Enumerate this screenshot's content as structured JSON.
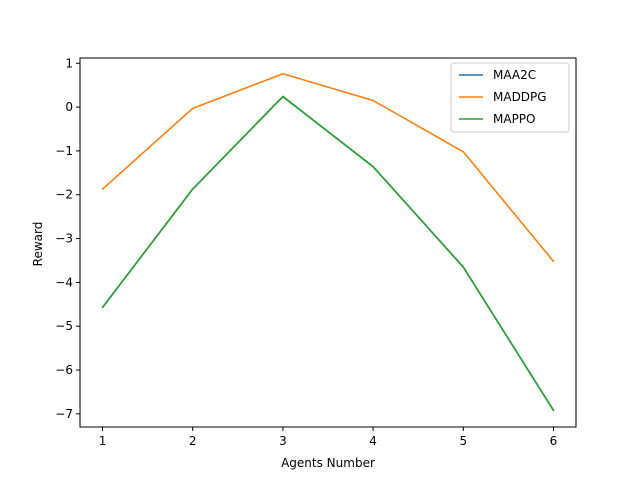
{
  "chart_data": {
    "type": "line",
    "title": "",
    "xlabel": "Agents Number",
    "ylabel": "Reward",
    "x": [
      1,
      2,
      3,
      4,
      5,
      6
    ],
    "xlim": [
      0.75,
      6.25
    ],
    "ylim": [
      -7.3,
      1.12
    ],
    "xticks": [
      1,
      2,
      3,
      4,
      5,
      6
    ],
    "yticks": [
      1,
      0,
      -1,
      -2,
      -3,
      -4,
      -5,
      -6,
      -7
    ],
    "ytick_labels": [
      "1",
      "0",
      "−1",
      "−2",
      "−3",
      "−4",
      "−5",
      "−6",
      "−7"
    ],
    "grid": false,
    "legend_position": "top-right",
    "series": [
      {
        "name": "MAA2C",
        "color": "#1f77b4",
        "values": [
          -4.57,
          -1.87,
          0.24,
          -1.36,
          -3.65,
          -6.92
        ]
      },
      {
        "name": "MADDPG",
        "color": "#ff7f0e",
        "values": [
          -1.87,
          -0.03,
          0.76,
          0.15,
          -1.02,
          -3.52
        ]
      },
      {
        "name": "MAPPO",
        "color": "#2ca02c",
        "values": [
          -4.57,
          -1.87,
          0.24,
          -1.36,
          -3.65,
          -6.92
        ]
      }
    ]
  }
}
